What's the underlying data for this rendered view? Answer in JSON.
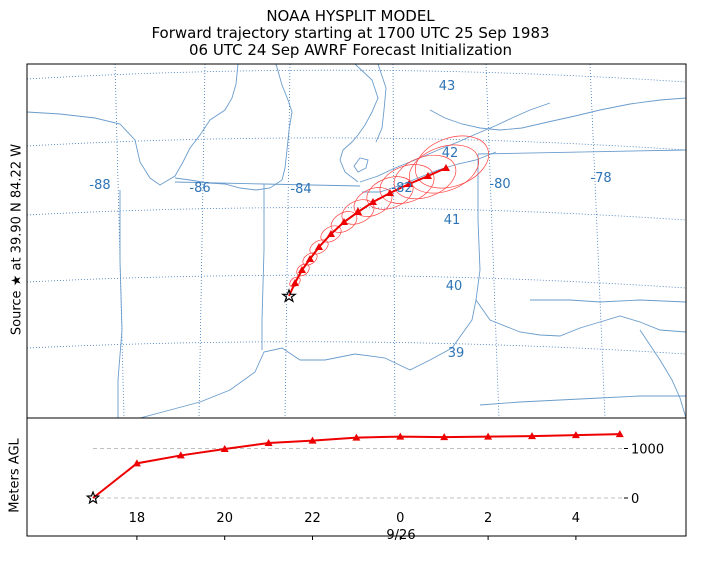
{
  "title": {
    "line1": "NOAA HYSPLIT MODEL",
    "line2": "Forward trajectory starting at 1700 UTC 25 Sep 1983",
    "line3": "06 UTC 24 Sep  AWRF  Forecast Initialization"
  },
  "source_label": "Source ★ at  39.90 N   84.22 W",
  "map": {
    "lon_labels": [
      "-88",
      "-86",
      "-84",
      "-82",
      "-80",
      "-78"
    ],
    "lat_labels": [
      "43",
      "42",
      "41",
      "40",
      "39"
    ],
    "colors": {
      "trajectory": "#ee0000",
      "boundaries": "#6a9ccc",
      "grid": "#3c78b8",
      "ellipses": "#ff4040"
    }
  },
  "chart_data": {
    "type": "line",
    "ylabel": "Meters AGL",
    "xlabel": "9/26",
    "x_ticks": [
      "18",
      "20",
      "22",
      "0",
      "2",
      "4"
    ],
    "y_ticks": [
      "1000",
      "0"
    ],
    "series": [
      {
        "hours_utc": [
          "17",
          "18",
          "19",
          "20",
          "21",
          "22",
          "23",
          "00",
          "01",
          "02",
          "03",
          "04",
          "05"
        ],
        "values": [
          0,
          700,
          860,
          990,
          1110,
          1160,
          1220,
          1240,
          1230,
          1240,
          1250,
          1270,
          1290
        ]
      }
    ]
  }
}
